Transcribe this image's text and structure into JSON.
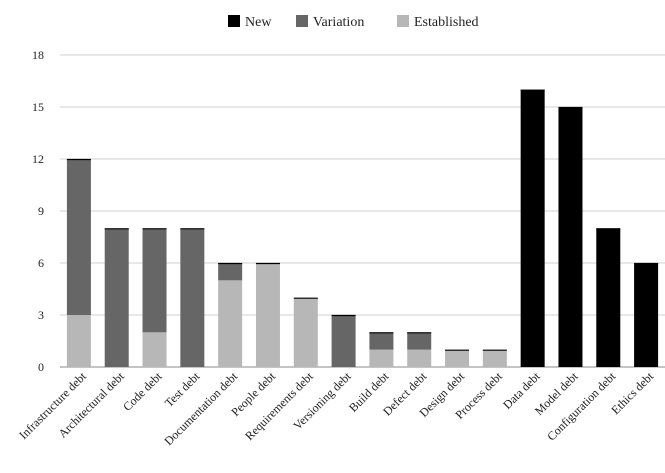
{
  "chart_data": {
    "type": "bar",
    "stacked": true,
    "title": "",
    "xlabel": "",
    "ylabel": "",
    "ylim": [
      0,
      18
    ],
    "yticks": [
      0,
      3,
      6,
      9,
      12,
      15,
      18
    ],
    "grid": true,
    "legend_position": "top-center",
    "categories": [
      "Infrastructure debt",
      "Architectural debt",
      "Code debt",
      "Test debt",
      "Documentation debt",
      "People debt",
      "Requirements debt",
      "Versioning debt",
      "Build debt",
      "Defect debt",
      "Design debt",
      "Process debt",
      "Data debt",
      "Model debt",
      "Configuration debt",
      "Ethics debt"
    ],
    "series": [
      {
        "name": "New",
        "color": "#000000",
        "values": [
          0,
          0,
          0,
          0,
          0,
          0,
          0,
          0,
          0,
          0,
          0,
          0,
          16,
          15,
          8,
          6
        ]
      },
      {
        "name": "Variation",
        "color": "#666666",
        "values": [
          9,
          8,
          6,
          8,
          1,
          0,
          0,
          3,
          1,
          1,
          0,
          0,
          0,
          0,
          0,
          0
        ]
      },
      {
        "name": "Established",
        "color": "#b7b7b7",
        "values": [
          3,
          0,
          2,
          0,
          5,
          6,
          4,
          0,
          1,
          1,
          1,
          1,
          0,
          0,
          0,
          0
        ]
      }
    ]
  }
}
